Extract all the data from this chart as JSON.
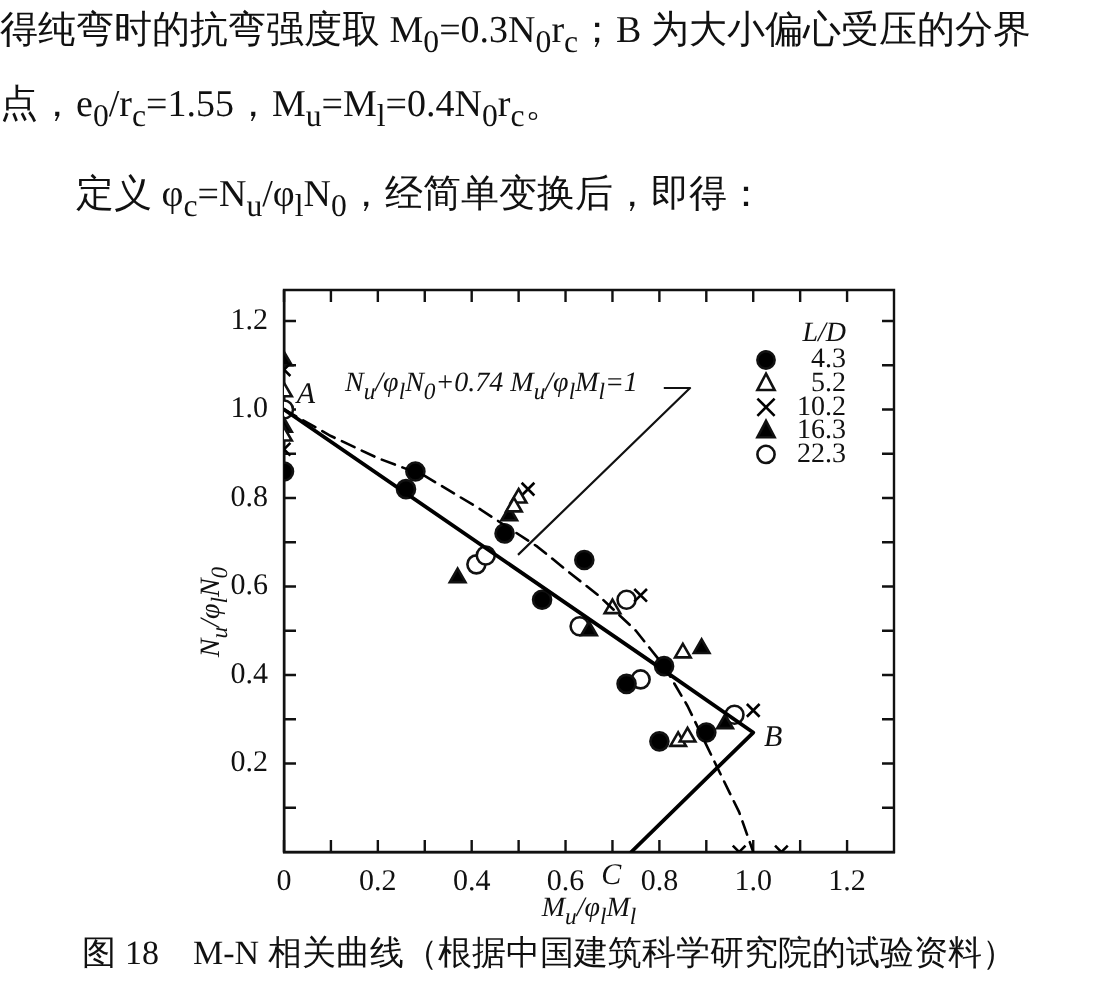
{
  "chart_data": {
    "type": "scatter",
    "title": "图 18　M-N 相关曲线（根据中国建筑科学研究院的试验资料）",
    "xlabel": "M$_{u}$/φ$_{l}$M$_{l}$",
    "ylabel": "N$_{u}$/φ$_{l}$N$_{0}$",
    "legend_title": "L/D",
    "legend": "top right",
    "xlim": [
      0,
      1.3
    ],
    "ylim": [
      0,
      1.27
    ],
    "xticks": [
      0,
      {
        "value": 0.1,
        "label": null
      },
      0.2,
      {
        "value": 0.3,
        "label": null
      },
      0.4,
      {
        "value": 0.5,
        "label": null
      },
      0.6,
      {
        "value": 0.7,
        "label": null
      },
      0.8,
      {
        "value": 0.9,
        "label": null
      },
      {
        "value": 1,
        "label": "1.0"
      },
      {
        "value": 1.1,
        "label": null
      },
      1.2
    ],
    "yticks": [
      {
        "value": 0.1,
        "label": null
      },
      0.2,
      {
        "value": 0.3,
        "label": null
      },
      0.4,
      {
        "value": 0.5,
        "label": null
      },
      0.6,
      {
        "value": 0.7,
        "label": null
      },
      0.8,
      {
        "value": 0.9,
        "label": null
      },
      {
        "value": 1,
        "label": "1.0"
      },
      {
        "value": 1.1,
        "label": null
      },
      1.2
    ],
    "annotations": [
      "得纯弯时的抗弯强度取 M$_{0}$=0.3N$_{0}$r$_{c}$；B 为大小偏心受压的分界",
      "点，e$_{0}$/r$_{c}$=1.55，M$_{u}$=M$_{l}$=0.4N$_{0}$r$_{c}$。",
      "定义 φ$_{c}$=N$_{u}$/φ$_{l}$N$_{0}$，经简单变换后，即得：",
      "N$_{u}$/φ$_{l}$N$_{0}$+0.74 M$_{u}$/φ$_{l}$M$_{l}$=1",
      {
        "text": "A",
        "x": 0,
        "y": 1.0
      },
      {
        "text": "B",
        "x": 1.0,
        "y": 0.27
      },
      {
        "text": "C",
        "x": 0.74,
        "y": 0
      }
    ],
    "series": [
      {
        "type": "line",
        "color": "#000000",
        "marker": "none",
        "line_style": "solid",
        "x": [
          0,
          0.81,
          1.0,
          0.74
        ],
        "values": [
          1.0,
          0.41,
          0.27,
          0
        ]
      },
      {
        "type": "line",
        "color": "#000000",
        "marker": "none",
        "line_style": "dashed",
        "x": [
          0,
          0.1,
          0.2,
          0.3,
          0.41,
          0.54,
          0.61,
          0.67,
          0.75,
          0.81,
          0.86,
          0.91,
          0.97,
          1.0
        ],
        "values": [
          1.0,
          0.94,
          0.89,
          0.85,
          0.78,
          0.69,
          0.63,
          0.58,
          0.5,
          0.42,
          0.33,
          0.22,
          0.09,
          0
        ]
      },
      {
        "name": "4.3",
        "color": "#000000",
        "marker": "circle",
        "x": [
          0,
          0.26,
          0.28,
          0.47,
          0.55,
          0.64,
          0.73,
          0.81,
          0.8,
          0.9
        ],
        "values": [
          0.86,
          0.82,
          0.86,
          0.72,
          0.57,
          0.66,
          0.38,
          0.42,
          0.25,
          0.27
        ]
      },
      {
        "name": "5.2",
        "color": "#ffffff",
        "marker": "triangle",
        "x": [
          0,
          0,
          0.5,
          0.49,
          0.7,
          0.85,
          0.84,
          0.86
        ],
        "values": [
          1.04,
          0.94,
          0.8,
          0.78,
          0.55,
          0.45,
          0.25,
          0.26
        ]
      },
      {
        "name": "10.2",
        "color": "#000000",
        "marker": "cross",
        "x": [
          0,
          0,
          0.52,
          0.76,
          1.0,
          0.97,
          1.06
        ],
        "values": [
          1.09,
          0.91,
          0.82,
          0.58,
          0.32,
          0,
          0
        ]
      },
      {
        "name": "16.3",
        "color": "#000000",
        "marker": "triangle",
        "x": [
          0,
          0,
          0.48,
          0.37,
          0.65,
          0.89,
          0.94
        ],
        "values": [
          1.11,
          0.96,
          0.76,
          0.62,
          0.5,
          0.46,
          0.29
        ]
      },
      {
        "name": "22.3",
        "color": "#ffffff",
        "marker": "circle",
        "x": [
          0,
          0.41,
          0.43,
          0.63,
          0.73,
          0.76,
          0.96
        ],
        "values": [
          1.0,
          0.65,
          0.67,
          0.51,
          0.57,
          0.39,
          0.31
        ]
      }
    ]
  }
}
